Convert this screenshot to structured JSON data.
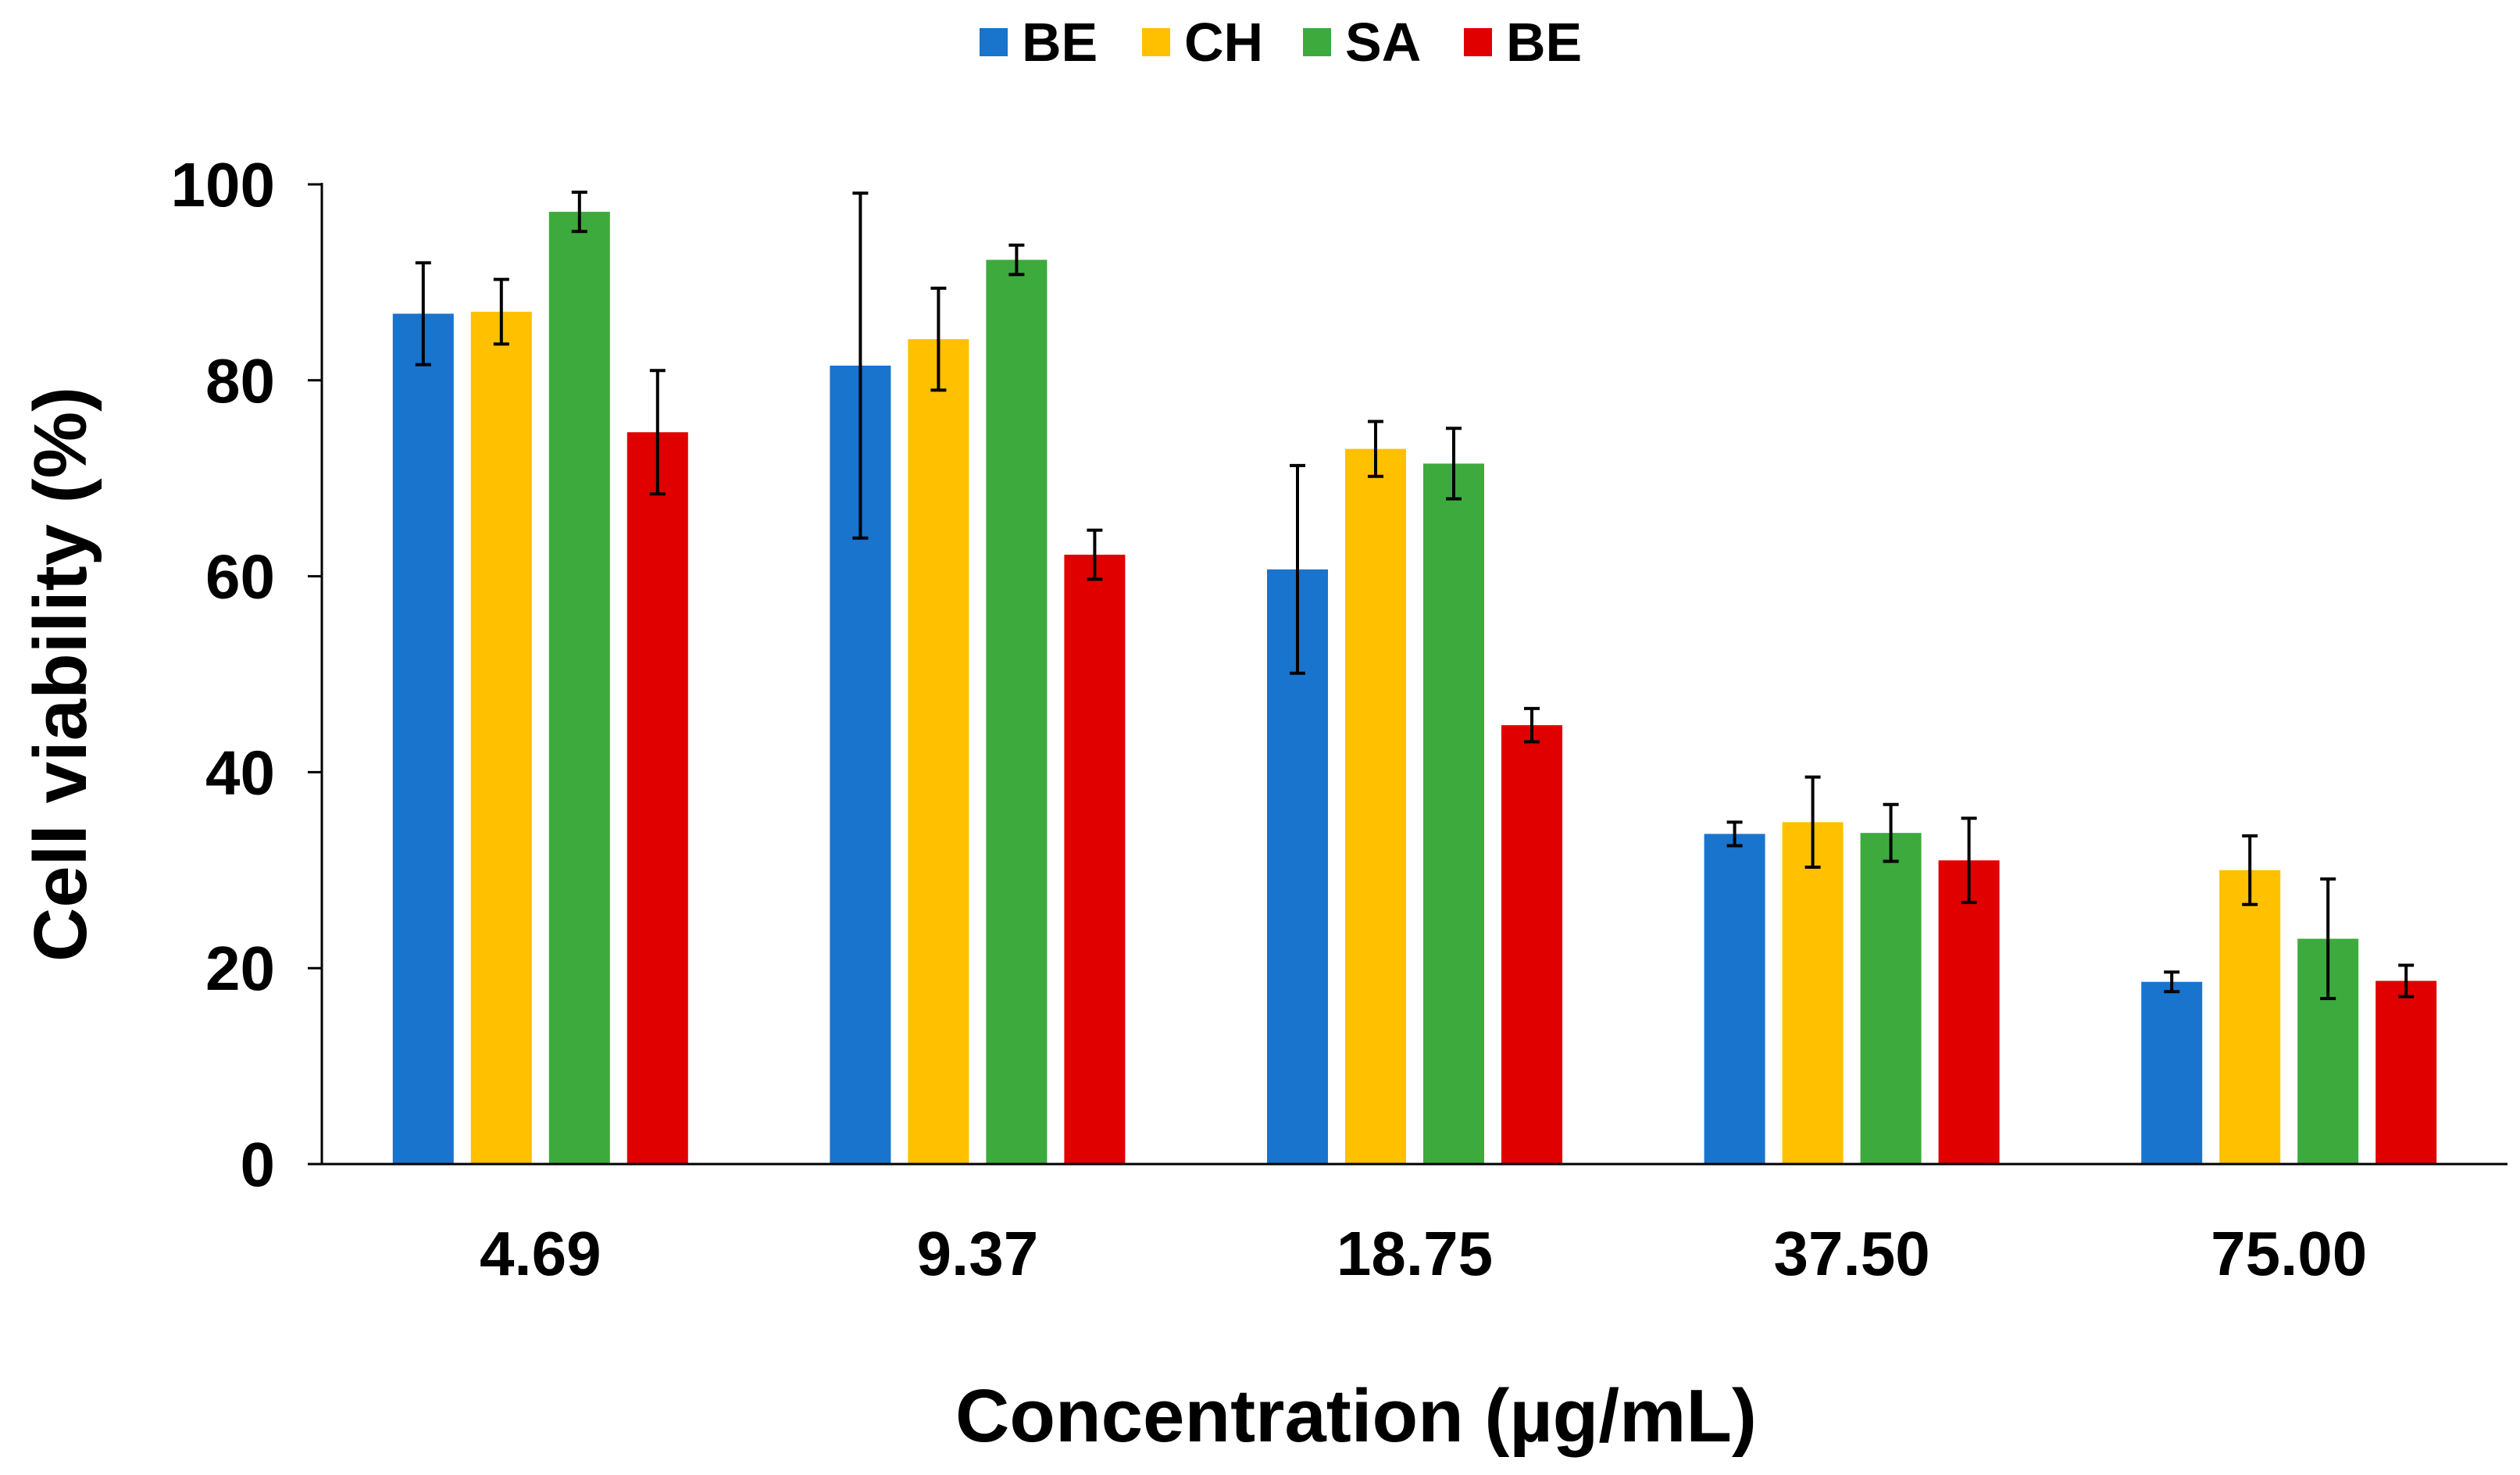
{
  "chart_data": {
    "type": "bar",
    "title": "",
    "xlabel": "Concentration (µg/mL)",
    "ylabel": "Cell viability (%)",
    "ylim": [
      0,
      100
    ],
    "yticks": [
      0,
      20,
      40,
      60,
      80,
      100
    ],
    "grid": false,
    "legend_position": "top-center",
    "categories": [
      "4.69",
      "9.37",
      "18.75",
      "37.50",
      "75.00"
    ],
    "series": [
      {
        "name": "BE",
        "color": "#1874cd",
        "values": [
          86.8,
          81.5,
          60.7,
          33.7,
          18.6
        ],
        "errors": [
          5.2,
          17.6,
          10.6,
          1.2,
          1.0
        ]
      },
      {
        "name": "CH",
        "color": "#ffc000",
        "values": [
          87.0,
          84.2,
          73.0,
          34.9,
          30.0
        ],
        "errors": [
          3.3,
          5.2,
          2.8,
          4.6,
          3.5
        ]
      },
      {
        "name": "SA",
        "color": "#3daa3d",
        "values": [
          97.2,
          92.3,
          71.5,
          33.8,
          23.0
        ],
        "errors": [
          2.0,
          1.5,
          3.6,
          2.9,
          6.1
        ]
      },
      {
        "name": "BE",
        "color": "#e00000",
        "values": [
          74.7,
          62.2,
          44.8,
          31.0,
          18.7
        ],
        "errors": [
          6.3,
          2.5,
          1.7,
          4.3,
          1.6
        ]
      }
    ]
  }
}
